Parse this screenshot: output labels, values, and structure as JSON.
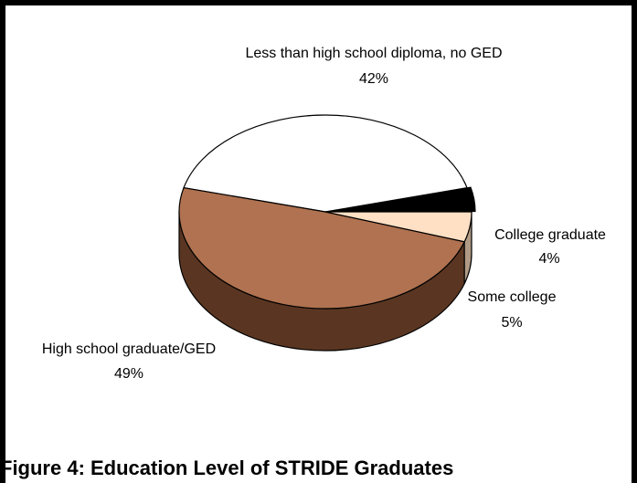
{
  "chart_data": {
    "type": "pie",
    "style": "3d",
    "categories": [
      "Less than high school diploma, no GED",
      "High school graduate/GED",
      "Some college",
      "College graduate"
    ],
    "values": [
      42,
      49,
      5,
      4
    ],
    "value_labels": [
      "42%",
      "49%",
      "5%",
      "4%"
    ],
    "colors": [
      "#ffffff",
      "#b07250",
      "#ffe0c4",
      "#000000"
    ],
    "side_colors": [
      "#bbbbbb",
      "#5a3622",
      "#b09a85",
      "#000000"
    ],
    "title": ""
  },
  "caption": "Figure 4: Education Level of STRIDE Graduates"
}
